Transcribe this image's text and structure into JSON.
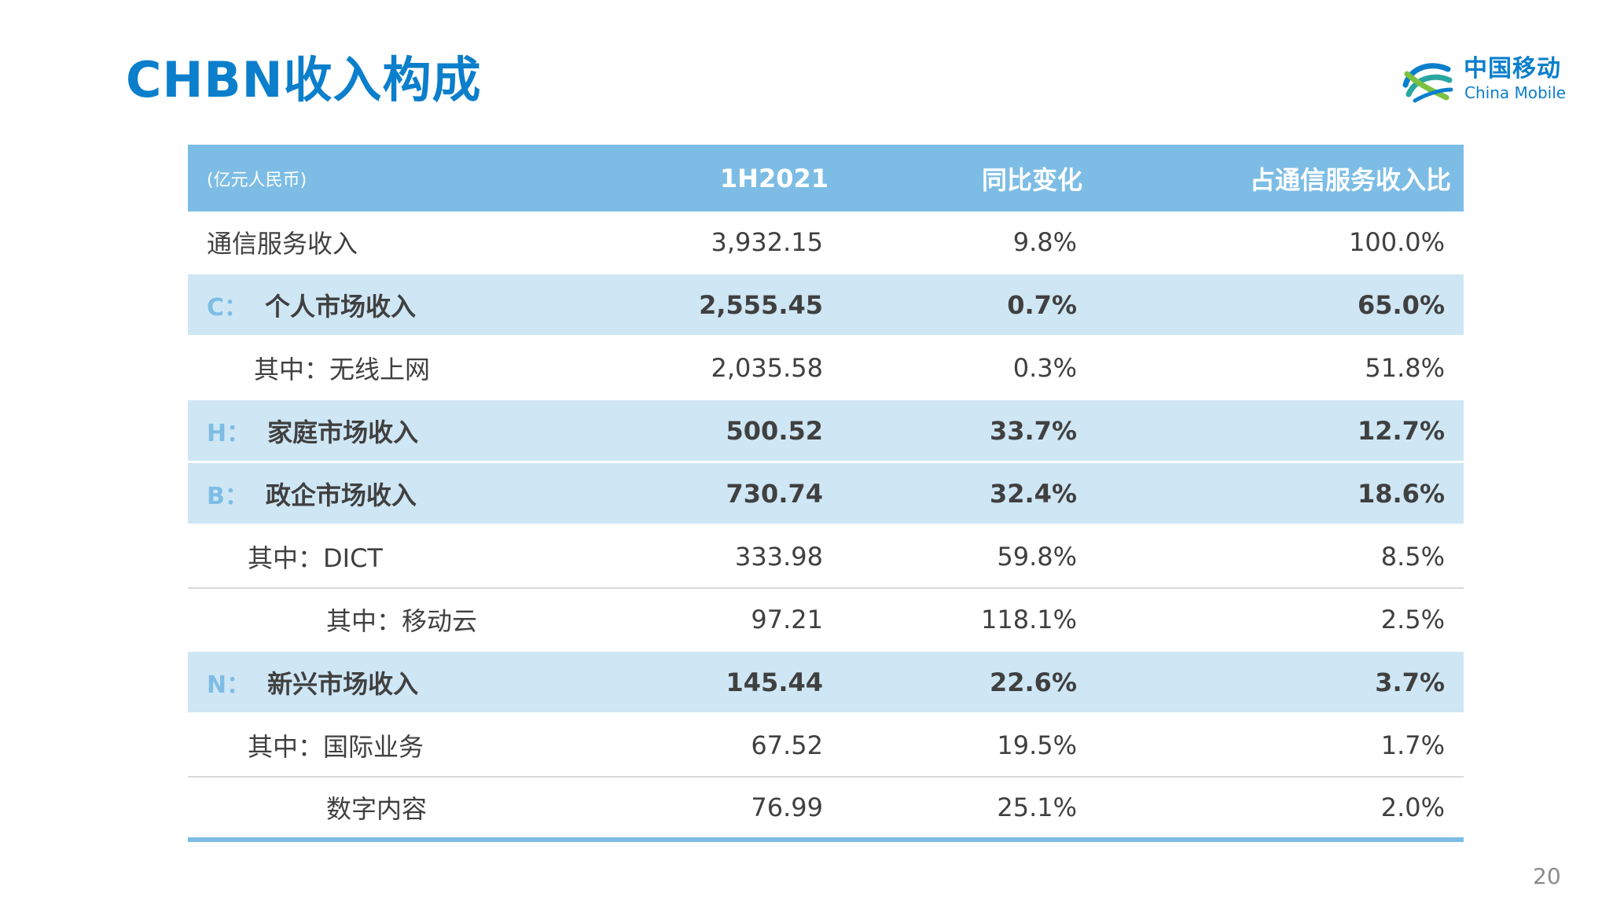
{
  "title": "CHBN收入构成",
  "logo": {
    "cn": "中国移动",
    "en": "China Mobile",
    "icon": "china-mobile-logo-icon"
  },
  "table": {
    "headers": {
      "unit": "(亿元人民币)",
      "col1": "1H2021",
      "col2": "同比变化",
      "col3": "占通信服务收入比"
    },
    "rows": [
      {
        "prefix": "",
        "label": "通信服务收入",
        "v1": "3,932.15",
        "v2": "9.8%",
        "v3": "100.0%"
      },
      {
        "prefix": "C：",
        "label": "个人市场收入",
        "v1": "2,555.45",
        "v2": "0.7%",
        "v3": "65.0%"
      },
      {
        "prefix": "",
        "label": "其中：无线上网",
        "v1": "2,035.58",
        "v2": "0.3%",
        "v3": "51.8%"
      },
      {
        "prefix": "H：",
        "label": "家庭市场收入",
        "v1": "500.52",
        "v2": "33.7%",
        "v3": "12.7%"
      },
      {
        "prefix": "B：",
        "label": "政企市场收入",
        "v1": "730.74",
        "v2": "32.4%",
        "v3": "18.6%"
      },
      {
        "prefix": "",
        "label": "其中：DICT",
        "v1": "333.98",
        "v2": "59.8%",
        "v3": "8.5%"
      },
      {
        "prefix": "",
        "label": "其中：移动云",
        "v1": "97.21",
        "v2": "118.1%",
        "v3": "2.5%"
      },
      {
        "prefix": "N：",
        "label": "新兴市场收入",
        "v1": "145.44",
        "v2": "22.6%",
        "v3": "3.7%"
      },
      {
        "prefix": "",
        "label": "其中：国际业务",
        "v1": "67.52",
        "v2": "19.5%",
        "v3": "1.7%"
      },
      {
        "prefix": "",
        "label": "数字内容",
        "v1": "76.99",
        "v2": "25.1%",
        "v3": "2.0%"
      }
    ]
  },
  "page_number": "20"
}
